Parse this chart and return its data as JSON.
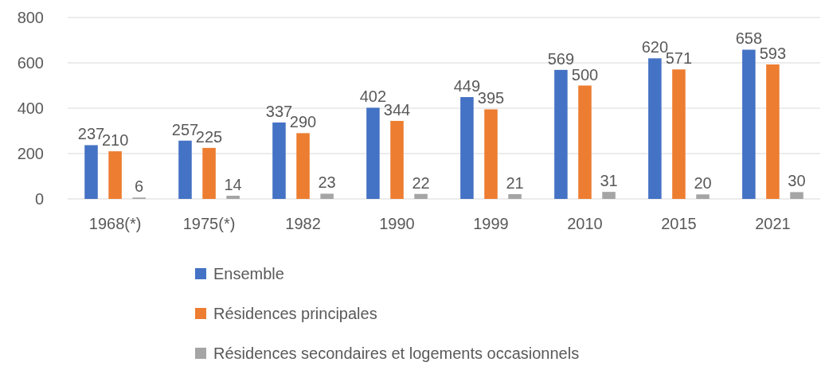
{
  "chart_data": {
    "type": "bar",
    "categories": [
      "1968(*)",
      "1975(*)",
      "1982",
      "1990",
      "1999",
      "2010",
      "2015",
      "2021"
    ],
    "series": [
      {
        "name": "Ensemble",
        "color": "#4472c4",
        "values": [
          237,
          257,
          337,
          402,
          449,
          569,
          620,
          658
        ]
      },
      {
        "name": "Résidences principales",
        "color": "#ed7d31",
        "values": [
          210,
          225,
          290,
          344,
          395,
          500,
          571,
          593
        ]
      },
      {
        "name": "Résidences secondaires et logements occasionnels",
        "color": "#a5a5a5",
        "values": [
          6,
          14,
          23,
          22,
          21,
          31,
          20,
          30
        ]
      }
    ],
    "ylim": [
      0,
      800
    ],
    "yticks": [
      0,
      200,
      400,
      600,
      800
    ],
    "grid": "y",
    "legend": "bottom",
    "data_labels": true
  }
}
